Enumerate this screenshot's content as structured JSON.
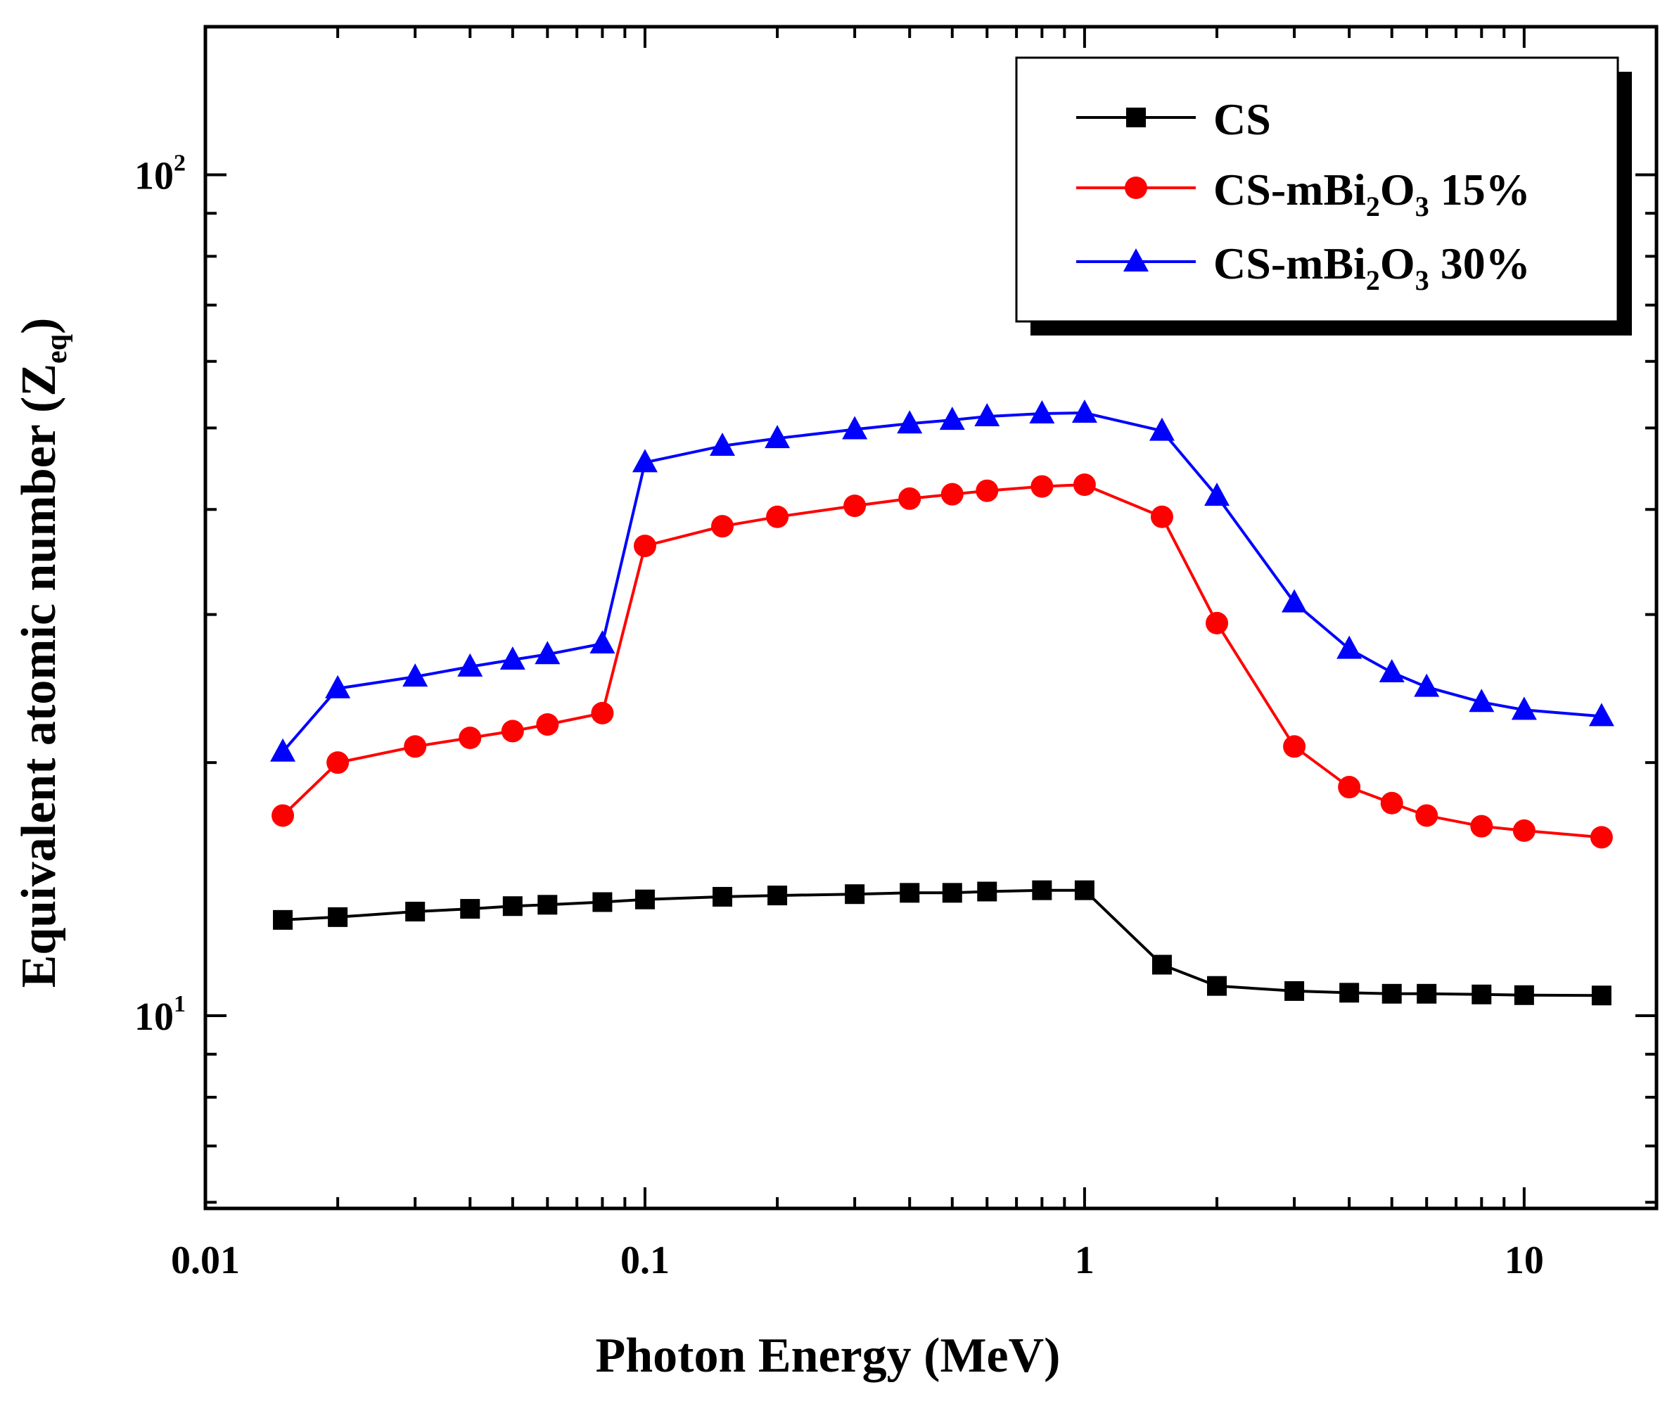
{
  "chart_data": {
    "type": "line",
    "title": "",
    "xlabel": "Photon Energy (MeV)",
    "ylabel": {
      "main": "Equivalent atomic number (Z",
      "sub": "eq",
      "close": ")"
    },
    "xscale": "log",
    "yscale": "log",
    "xlim": [
      0.01,
      20
    ],
    "ylim": [
      5.9,
      150
    ],
    "x_ticks": [
      {
        "value": 0.01,
        "label": "0.01"
      },
      {
        "value": 0.1,
        "label": "0.1"
      },
      {
        "value": 1,
        "label": "1"
      },
      {
        "value": 10,
        "label": "10"
      }
    ],
    "y_ticks": [
      {
        "value": 10,
        "base": "10",
        "exp": "1"
      },
      {
        "value": 100,
        "base": "10",
        "exp": "2"
      }
    ],
    "grid": false,
    "legend_position": "top-right",
    "x": [
      0.015,
      0.02,
      0.03,
      0.04,
      0.05,
      0.06,
      0.08,
      0.1,
      0.15,
      0.2,
      0.3,
      0.4,
      0.5,
      0.6,
      0.8,
      1,
      1.5,
      2,
      3,
      4,
      5,
      6,
      8,
      10,
      15
    ],
    "series": [
      {
        "name": "CS",
        "color": "#000000",
        "marker": "square",
        "values": [
          13.0,
          13.1,
          13.3,
          13.4,
          13.5,
          13.55,
          13.65,
          13.75,
          13.85,
          13.9,
          13.95,
          14.0,
          14.0,
          14.05,
          14.1,
          14.1,
          11.5,
          10.85,
          10.7,
          10.65,
          10.62,
          10.62,
          10.6,
          10.58,
          10.57
        ],
        "legend_label": {
          "parts": [
            {
              "t": "CS",
              "sub": false
            }
          ]
        }
      },
      {
        "name": "CS-mBi2O3 15%",
        "color": "#ff0000",
        "marker": "circle",
        "values": [
          17.3,
          20.0,
          20.9,
          21.4,
          21.8,
          22.2,
          22.9,
          36.2,
          38.2,
          39.2,
          40.4,
          41.2,
          41.7,
          42.1,
          42.6,
          42.8,
          39.2,
          29.3,
          20.9,
          18.7,
          17.9,
          17.3,
          16.8,
          16.6,
          16.3
        ],
        "legend_label": {
          "parts": [
            {
              "t": "CS-mBi",
              "sub": false
            },
            {
              "t": "2",
              "sub": true
            },
            {
              "t": "O",
              "sub": false
            },
            {
              "t": "3",
              "sub": true
            },
            {
              "t": " 15%",
              "sub": false
            }
          ]
        }
      },
      {
        "name": "CS-mBi2O3 30%",
        "color": "#0000ff",
        "marker": "triangle",
        "values": [
          20.6,
          24.5,
          25.3,
          26.0,
          26.5,
          26.9,
          27.7,
          45.5,
          47.6,
          48.6,
          49.8,
          50.6,
          51.1,
          51.6,
          52.0,
          52.1,
          49.6,
          41.5,
          31.0,
          27.3,
          25.6,
          24.6,
          23.6,
          23.1,
          22.7
        ],
        "legend_label": {
          "parts": [
            {
              "t": "CS-mBi",
              "sub": false
            },
            {
              "t": "2",
              "sub": true
            },
            {
              "t": "O",
              "sub": false
            },
            {
              "t": "3",
              "sub": true
            },
            {
              "t": " 30%",
              "sub": false
            }
          ]
        }
      }
    ]
  }
}
